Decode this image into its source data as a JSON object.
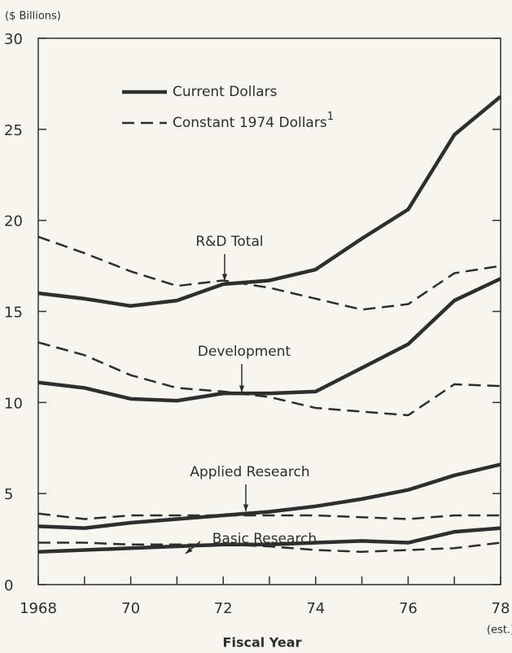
{
  "chart_data": {
    "type": "line",
    "y_label": "($ Billions)",
    "x_label": "Fiscal Year",
    "annotation": "(est.)",
    "x": [
      1968,
      1969,
      1970,
      1971,
      1972,
      1973,
      1974,
      1975,
      1976,
      1977,
      1978
    ],
    "xlim": [
      1968,
      1978
    ],
    "xticks": [
      {
        "value": 1968,
        "label": "1968"
      },
      {
        "value": 1970,
        "label": "70"
      },
      {
        "value": 1972,
        "label": "72"
      },
      {
        "value": 1974,
        "label": "74"
      },
      {
        "value": 1976,
        "label": "76"
      },
      {
        "value": 1978,
        "label": "78"
      }
    ],
    "ylim": [
      0,
      30
    ],
    "yticks": [
      0,
      5,
      10,
      15,
      20,
      25,
      30
    ],
    "color": "#2e2e2e",
    "legend": [
      {
        "label": "Current Dollars",
        "style": "solid"
      },
      {
        "label": "Constant 1974 Dollars",
        "sup": "1",
        "style": "dashed"
      }
    ],
    "series": [
      {
        "name": "R&D Total",
        "current": [
          16.0,
          15.7,
          15.3,
          15.6,
          16.5,
          16.7,
          17.3,
          19.0,
          20.6,
          24.7,
          26.8
        ],
        "constant": [
          19.1,
          18.2,
          17.2,
          16.4,
          16.7,
          16.3,
          15.7,
          15.1,
          15.4,
          17.1,
          17.5
        ]
      },
      {
        "name": "Development",
        "current": [
          11.1,
          10.8,
          10.2,
          10.1,
          10.5,
          10.5,
          10.6,
          11.9,
          13.2,
          15.6,
          16.8
        ],
        "constant": [
          13.3,
          12.6,
          11.5,
          10.8,
          10.6,
          10.3,
          9.7,
          9.5,
          9.3,
          11.0,
          10.9
        ]
      },
      {
        "name": "Applied Research",
        "current": [
          3.2,
          3.1,
          3.4,
          3.6,
          3.8,
          4.0,
          4.3,
          4.7,
          5.2,
          6.0,
          6.6
        ],
        "constant": [
          3.9,
          3.6,
          3.8,
          3.8,
          3.8,
          3.8,
          3.8,
          3.7,
          3.6,
          3.8,
          3.8
        ]
      },
      {
        "name": "Basic Research",
        "current": [
          1.8,
          1.9,
          2.0,
          2.1,
          2.2,
          2.2,
          2.3,
          2.4,
          2.3,
          2.9,
          3.1
        ],
        "constant": [
          2.3,
          2.3,
          2.2,
          2.2,
          2.2,
          2.1,
          1.9,
          1.8,
          1.9,
          2.0,
          2.3
        ]
      }
    ]
  }
}
